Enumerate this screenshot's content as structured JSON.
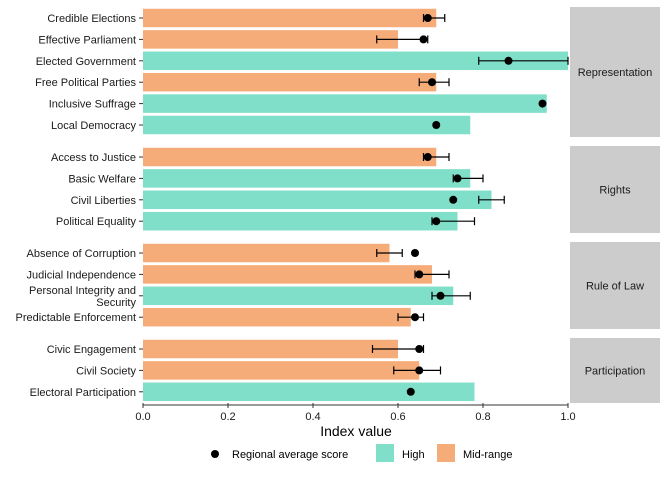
{
  "chart_data": {
    "type": "bar",
    "xlabel": "Index value",
    "xlim": [
      0,
      1
    ],
    "x_ticks": [
      "0.0",
      "0.2",
      "0.4",
      "0.6",
      "0.8",
      "1.0"
    ],
    "grid": false,
    "legend_position": "bottom",
    "legend": {
      "point_label": "Regional average score",
      "high_label": "High",
      "mid_label": "Mid-range"
    },
    "colors": {
      "High": "#7fdfc9",
      "Mid-range": "#f5ac78",
      "point": "#000000",
      "strip": "#cccccc"
    },
    "panels": [
      {
        "name": "Representation",
        "items": [
          {
            "label": "Credible Elections",
            "value": 0.69,
            "category": "Mid-range",
            "avg": 0.67,
            "err": [
              0.66,
              0.71
            ]
          },
          {
            "label": "Effective Parliament",
            "value": 0.6,
            "category": "Mid-range",
            "avg": 0.66,
            "err": [
              0.55,
              0.67
            ]
          },
          {
            "label": "Elected Government",
            "value": 1.0,
            "category": "High",
            "avg": 0.86,
            "err": [
              0.79,
              1.0
            ]
          },
          {
            "label": "Free Political Parties",
            "value": 0.69,
            "category": "Mid-range",
            "avg": 0.68,
            "err": [
              0.65,
              0.72
            ]
          },
          {
            "label": "Inclusive Suffrage",
            "value": 0.95,
            "category": "High",
            "avg": 0.94,
            "err": null
          },
          {
            "label": "Local Democracy",
            "value": 0.77,
            "category": "High",
            "avg": 0.69,
            "err": null
          }
        ]
      },
      {
        "name": "Rights",
        "items": [
          {
            "label": "Access to Justice",
            "value": 0.69,
            "category": "Mid-range",
            "avg": 0.67,
            "err": [
              0.66,
              0.72
            ]
          },
          {
            "label": "Basic Welfare",
            "value": 0.77,
            "category": "High",
            "avg": 0.74,
            "err": [
              0.73,
              0.8
            ]
          },
          {
            "label": "Civil Liberties",
            "value": 0.82,
            "category": "High",
            "avg": 0.73,
            "err": [
              0.79,
              0.85
            ]
          },
          {
            "label": "Political Equality",
            "value": 0.74,
            "category": "High",
            "avg": 0.69,
            "err": [
              0.68,
              0.78
            ]
          }
        ]
      },
      {
        "name": "Rule of Law",
        "items": [
          {
            "label": "Absence of Corruption",
            "value": 0.58,
            "category": "Mid-range",
            "avg": 0.64,
            "err": [
              0.55,
              0.61
            ]
          },
          {
            "label": "Judicial Independence",
            "value": 0.68,
            "category": "Mid-range",
            "avg": 0.65,
            "err": [
              0.64,
              0.72
            ]
          },
          {
            "label": "Personal Integrity and\nSecurity",
            "value": 0.73,
            "category": "High",
            "avg": 0.7,
            "err": [
              0.68,
              0.77
            ]
          },
          {
            "label": "Predictable Enforcement",
            "value": 0.63,
            "category": "Mid-range",
            "avg": 0.64,
            "err": [
              0.6,
              0.66
            ]
          }
        ]
      },
      {
        "name": "Participation",
        "items": [
          {
            "label": "Civic Engagement",
            "value": 0.6,
            "category": "Mid-range",
            "avg": 0.65,
            "err": [
              0.54,
              0.66
            ]
          },
          {
            "label": "Civil Society",
            "value": 0.65,
            "category": "Mid-range",
            "avg": 0.65,
            "err": [
              0.59,
              0.7
            ]
          },
          {
            "label": "Electoral Participation",
            "value": 0.78,
            "category": "High",
            "avg": 0.63,
            "err": null
          }
        ]
      }
    ]
  }
}
